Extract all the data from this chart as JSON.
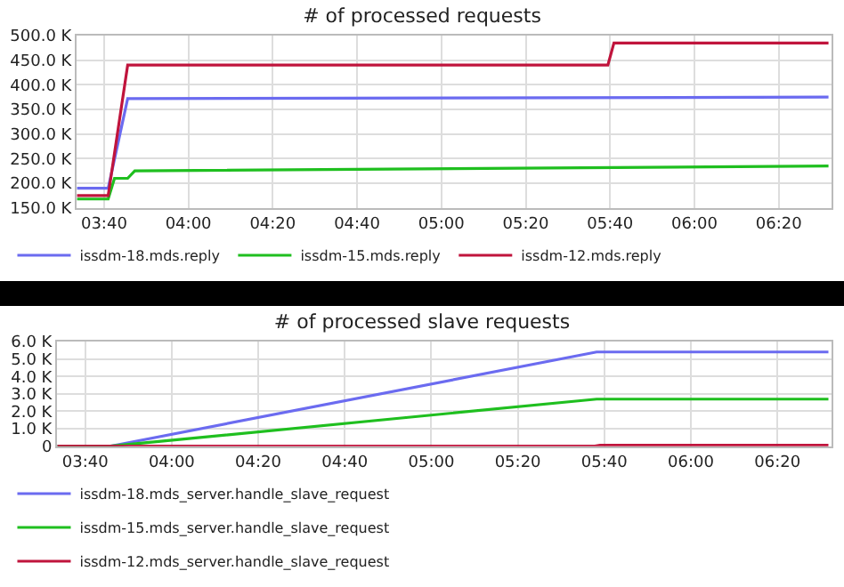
{
  "chart_data": [
    {
      "type": "line",
      "title": "# of processed requests",
      "xlim": [
        3.558,
        6.542
      ],
      "ylim": [
        150000,
        500000
      ],
      "xticks": [
        {
          "value": 3.6667,
          "label": "03:40"
        },
        {
          "value": 4,
          "label": "04:00"
        },
        {
          "value": 4.3333,
          "label": "04:20"
        },
        {
          "value": 4.6667,
          "label": "04:40"
        },
        {
          "value": 5,
          "label": "05:00"
        },
        {
          "value": 5.3333,
          "label": "05:20"
        },
        {
          "value": 5.6667,
          "label": "05:40"
        },
        {
          "value": 6,
          "label": "06:00"
        },
        {
          "value": 6.3333,
          "label": "06:20"
        }
      ],
      "yticks": [
        {
          "value": 150000,
          "label": "150.0 K"
        },
        {
          "value": 200000,
          "label": "200.0 K"
        },
        {
          "value": 250000,
          "label": "250.0 K"
        },
        {
          "value": 300000,
          "label": "300.0 K"
        },
        {
          "value": 350000,
          "label": "350.0 K"
        },
        {
          "value": 400000,
          "label": "400.0 K"
        },
        {
          "value": 450000,
          "label": "450.0 K"
        },
        {
          "value": 500000,
          "label": "500.0 K"
        }
      ],
      "grid": true,
      "legend": "bottom",
      "marker": "none",
      "line_style": "solid",
      "series": [
        {
          "name": "issdm-18.mds.reply",
          "color": "#6b6bf0",
          "x": [
            3.56,
            3.683,
            3.76,
            6.53
          ],
          "values": [
            190000,
            190000,
            372000,
            375000
          ]
        },
        {
          "name": "issdm-15.mds.reply",
          "color": "#1fbf1f",
          "x": [
            3.56,
            3.683,
            3.708,
            3.76,
            3.788,
            6.53
          ],
          "values": [
            168000,
            168000,
            210000,
            210000,
            225000,
            235000
          ]
        },
        {
          "name": "issdm-12.mds.reply",
          "color": "#c0143c",
          "x": [
            3.56,
            3.683,
            3.76,
            5.658,
            5.682,
            6.53
          ],
          "values": [
            175000,
            175000,
            440000,
            440000,
            485000,
            485000
          ]
        }
      ]
    },
    {
      "type": "line",
      "title": "# of processed slave requests",
      "xlim": [
        3.558,
        6.542
      ],
      "ylim": [
        0,
        6000
      ],
      "xticks": [
        {
          "value": 3.6667,
          "label": "03:40"
        },
        {
          "value": 4,
          "label": "04:00"
        },
        {
          "value": 4.3333,
          "label": "04:20"
        },
        {
          "value": 4.6667,
          "label": "04:40"
        },
        {
          "value": 5,
          "label": "05:00"
        },
        {
          "value": 5.3333,
          "label": "05:20"
        },
        {
          "value": 5.6667,
          "label": "05:40"
        },
        {
          "value": 6,
          "label": "06:00"
        },
        {
          "value": 6.3333,
          "label": "06:20"
        }
      ],
      "yticks": [
        0,
        {
          "value": 1000,
          "label": "1.0 K"
        },
        {
          "value": 2000,
          "label": "2.0 K"
        },
        {
          "value": 3000,
          "label": "3.0 K"
        },
        {
          "value": 4000,
          "label": "4.0 K"
        },
        {
          "value": 5000,
          "label": "5.0 K"
        },
        {
          "value": 6000,
          "label": "6.0 K"
        }
      ],
      "grid": true,
      "legend": "bottom",
      "marker": "none",
      "line_style": "solid",
      "series": [
        {
          "name": "issdm-18.mds_server.handle_slave_request",
          "color": "#6b6bf0",
          "x": [
            3.56,
            3.762,
            5.637,
            6.53
          ],
          "values": [
            0,
            0,
            5400,
            5400
          ]
        },
        {
          "name": "issdm-15.mds_server.handle_slave_request",
          "color": "#1fbf1f",
          "x": [
            3.56,
            3.762,
            5.637,
            6.53
          ],
          "values": [
            0,
            0,
            2700,
            2700
          ]
        },
        {
          "name": "issdm-12.mds_server.handle_slave_request",
          "color": "#c0143c",
          "x": [
            3.56,
            5.63,
            5.65,
            6.53
          ],
          "values": [
            0,
            0,
            50,
            50
          ]
        }
      ]
    }
  ]
}
